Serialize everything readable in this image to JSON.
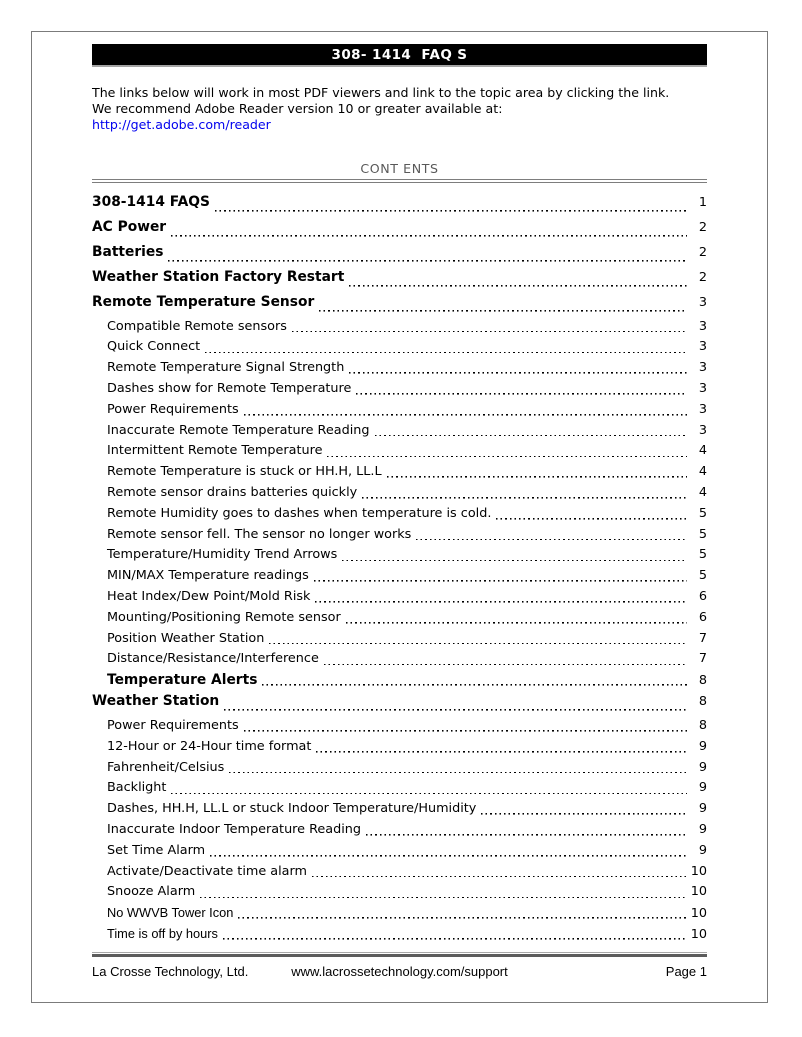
{
  "title_bar": {
    "text": "308- 1414  FAQ S"
  },
  "intro": {
    "line1": "The links below will work in most PDF viewers and link to the topic area by clicking the link.",
    "line2": "We recommend Adobe Reader version 10 or greater available at:",
    "link": "http://get.adobe.com/reader"
  },
  "contents_heading": "CONT ENTS",
  "toc": {
    "entries": [
      {
        "title": "308-1414 FAQS",
        "page": "1",
        "level": 1,
        "bold": true,
        "alt_font": false
      },
      {
        "title": "AC Power",
        "page": "2",
        "level": 1,
        "bold": true,
        "alt_font": false
      },
      {
        "title": "Batteries",
        "page": "2",
        "level": 1,
        "bold": true,
        "alt_font": false
      },
      {
        "title": "Weather Station Factory Restart",
        "page": "2",
        "level": 1,
        "bold": true,
        "alt_font": false
      },
      {
        "title": "Remote Temperature Sensor",
        "page": "3",
        "level": 1,
        "bold": true,
        "alt_font": false
      },
      {
        "title": "Compatible Remote sensors",
        "page": "3",
        "level": 2,
        "bold": false,
        "alt_font": false
      },
      {
        "title": "Quick Connect",
        "page": "3",
        "level": 2,
        "bold": false,
        "alt_font": false
      },
      {
        "title": "Remote Temperature Signal Strength",
        "page": "3",
        "level": 2,
        "bold": false,
        "alt_font": false
      },
      {
        "title": "Dashes show for Remote Temperature",
        "page": "3",
        "level": 2,
        "bold": false,
        "alt_font": false
      },
      {
        "title": "Power Requirements",
        "page": "3",
        "level": 2,
        "bold": false,
        "alt_font": false
      },
      {
        "title": "Inaccurate Remote Temperature Reading",
        "page": "3",
        "level": 2,
        "bold": false,
        "alt_font": false
      },
      {
        "title": "Intermittent Remote Temperature",
        "page": "4",
        "level": 2,
        "bold": false,
        "alt_font": false
      },
      {
        "title": "Remote Temperature is stuck or HH.H, LL.L",
        "page": "4",
        "level": 2,
        "bold": false,
        "alt_font": false
      },
      {
        "title": "Remote sensor drains batteries quickly",
        "page": "4",
        "level": 2,
        "bold": false,
        "alt_font": false
      },
      {
        "title": "Remote Humidity goes to dashes when temperature is cold.",
        "page": "5",
        "level": 2,
        "bold": false,
        "alt_font": false
      },
      {
        "title": "Remote sensor fell. The sensor no longer works",
        "page": "5",
        "level": 2,
        "bold": false,
        "alt_font": false
      },
      {
        "title": "Temperature/Humidity Trend Arrows",
        "page": "5",
        "level": 2,
        "bold": false,
        "alt_font": false
      },
      {
        "title": "MIN/MAX Temperature readings",
        "page": "5",
        "level": 2,
        "bold": false,
        "alt_font": false
      },
      {
        "title": "Heat Index/Dew Point/Mold Risk",
        "page": "6",
        "level": 2,
        "bold": false,
        "alt_font": false
      },
      {
        "title": "Mounting/Positioning Remote sensor",
        "page": "6",
        "level": 2,
        "bold": false,
        "alt_font": false
      },
      {
        "title": "Position Weather Station",
        "page": "7",
        "level": 2,
        "bold": false,
        "alt_font": false
      },
      {
        "title": "Distance/Resistance/Interference",
        "page": "7",
        "level": 2,
        "bold": false,
        "alt_font": false
      },
      {
        "title": "Temperature Alerts",
        "page": "8",
        "level": 2,
        "bold": true,
        "alt_font": false
      },
      {
        "title": "Weather Station",
        "page": "8",
        "level": 1,
        "bold": true,
        "alt_font": false
      },
      {
        "title": "Power Requirements",
        "page": "8",
        "level": 2,
        "bold": false,
        "alt_font": false
      },
      {
        "title": "12-Hour or 24-Hour time format",
        "page": "9",
        "level": 2,
        "bold": false,
        "alt_font": false
      },
      {
        "title": "Fahrenheit/Celsius",
        "page": "9",
        "level": 2,
        "bold": false,
        "alt_font": false
      },
      {
        "title": "Backlight",
        "page": "9",
        "level": 2,
        "bold": false,
        "alt_font": false
      },
      {
        "title": "Dashes, HH.H, LL.L or stuck Indoor Temperature/Humidity",
        "page": "9",
        "level": 2,
        "bold": false,
        "alt_font": false
      },
      {
        "title": "Inaccurate Indoor Temperature Reading",
        "page": "9",
        "level": 2,
        "bold": false,
        "alt_font": false
      },
      {
        "title": "Set Time Alarm",
        "page": "9",
        "level": 2,
        "bold": false,
        "alt_font": false
      },
      {
        "title": "Activate/Deactivate time alarm",
        "page": "10",
        "level": 2,
        "bold": false,
        "alt_font": false
      },
      {
        "title": "Snooze Alarm",
        "page": "10",
        "level": 2,
        "bold": false,
        "alt_font": false
      },
      {
        "title": "No WWVB Tower Icon",
        "page": "10",
        "level": 2,
        "bold": false,
        "alt_font": true
      },
      {
        "title": "Time is off by hours",
        "page": "10",
        "level": 2,
        "bold": false,
        "alt_font": true
      }
    ]
  },
  "footer": {
    "company": "La Crosse Technology, Ltd.",
    "website": "www.lacrossetechnology.com/support",
    "page_label": "Page 1"
  },
  "colors": {
    "link_blue": "#0000ee",
    "heading_gray": "#595959",
    "title_bar_bg": "#000000",
    "title_bar_text": "#ffffff"
  }
}
